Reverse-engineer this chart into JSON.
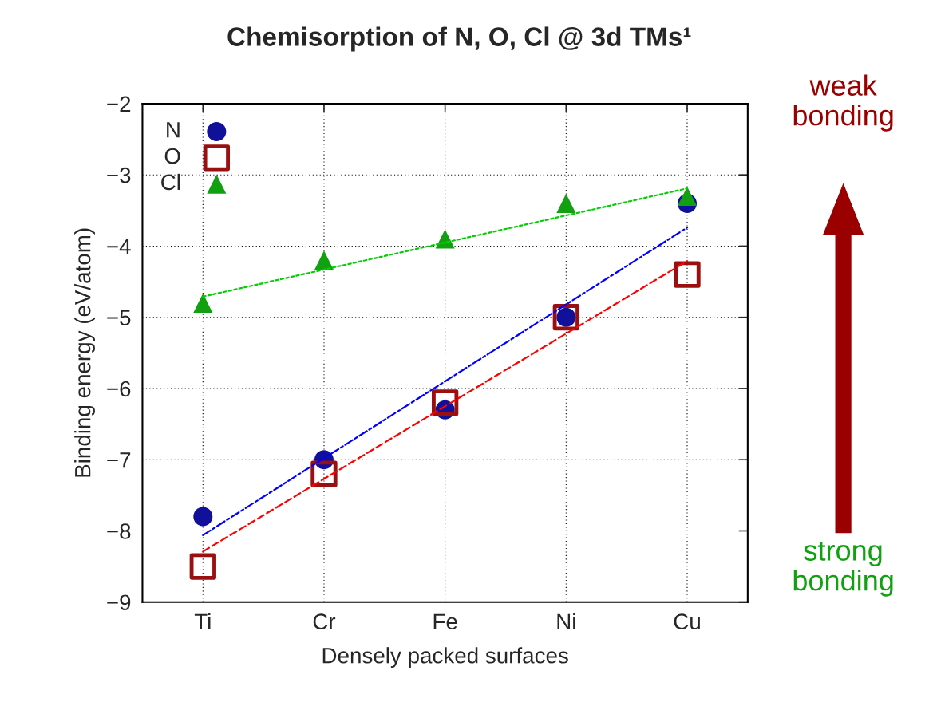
{
  "chart_data": {
    "type": "scatter",
    "title": "Chemisorption of N, O, Cl @ 3d TMs¹",
    "xlabel": "Densely packed surfaces",
    "ylabel": "Binding energy (eV/atom)",
    "categories": [
      "Ti",
      "Cr",
      "Fe",
      "Ni",
      "Cu"
    ],
    "ylim": [
      -9,
      -2
    ],
    "yticks": [
      -9,
      -8,
      -7,
      -6,
      -5,
      -4,
      -3,
      -2
    ],
    "series": [
      {
        "name": "N",
        "marker": "circle",
        "color": "#10109a",
        "values": [
          -7.8,
          -7.0,
          -6.3,
          -5.0,
          -3.4
        ]
      },
      {
        "name": "O",
        "marker": "square",
        "color": "#9a1010",
        "values": [
          -8.5,
          -7.2,
          -6.2,
          -5.0,
          -4.4
        ]
      },
      {
        "name": "Cl",
        "marker": "triangle",
        "color": "#10a010",
        "values": [
          -4.8,
          -4.2,
          -3.9,
          -3.4,
          -3.3
        ]
      },
      {
        "type": "line",
        "line_style": "dashdot",
        "color": "#0000ff",
        "values": [
          -8.06,
          -6.98,
          -5.9,
          -4.82,
          -3.74
        ]
      },
      {
        "type": "line",
        "line_style": "dashed",
        "color": "#ff0000",
        "values": [
          -8.29,
          -7.27,
          -6.25,
          -5.23,
          -4.21
        ]
      },
      {
        "type": "line",
        "line_style": "dotted",
        "color": "#00d000",
        "values": [
          -4.71,
          -4.33,
          -3.95,
          -3.57,
          -3.19
        ]
      }
    ],
    "grid": true,
    "legend": "top left",
    "annotations": [
      "weak\nbonding",
      "strong\nbonding"
    ]
  }
}
